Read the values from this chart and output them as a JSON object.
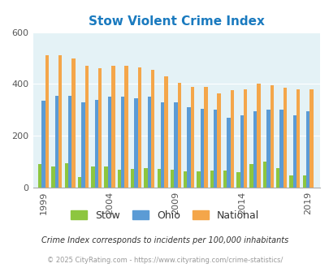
{
  "title": "Stow Violent Crime Index",
  "title_color": "#1a7abf",
  "valid_years": [
    1999,
    2000,
    2001,
    2002,
    2003,
    2004,
    2005,
    2006,
    2007,
    2008,
    2009,
    2010,
    2011,
    2012,
    2013,
    2014,
    2015,
    2016,
    2017,
    2018,
    2019
  ],
  "stow_vals": [
    90,
    80,
    95,
    40,
    80,
    80,
    70,
    72,
    75,
    73,
    68,
    62,
    62,
    65,
    65,
    60,
    90,
    100,
    75,
    48,
    48
  ],
  "ohio_vals": [
    335,
    355,
    355,
    330,
    340,
    350,
    350,
    345,
    350,
    330,
    330,
    310,
    305,
    300,
    270,
    280,
    295,
    300,
    300,
    280,
    295
  ],
  "national_vals": [
    510,
    510,
    500,
    470,
    460,
    470,
    470,
    465,
    455,
    430,
    405,
    390,
    390,
    365,
    375,
    380,
    400,
    395,
    385,
    380,
    378
  ],
  "ylim": [
    0,
    600
  ],
  "yticks": [
    0,
    200,
    400,
    600
  ],
  "xtick_labels": [
    "1999",
    "2004",
    "2009",
    "2014",
    "2019"
  ],
  "xtick_positions": [
    1999,
    2004,
    2009,
    2014,
    2019
  ],
  "background_color": "#e4f2f6",
  "bar_width": 0.27,
  "stow_color": "#8dc63f",
  "ohio_color": "#5b9bd5",
  "national_color": "#f4a64a",
  "legend_labels": [
    "Stow",
    "Ohio",
    "National"
  ],
  "footnote1": "Crime Index corresponds to incidents per 100,000 inhabitants",
  "footnote2": "© 2025 CityRating.com - https://www.cityrating.com/crime-statistics/",
  "footnote1_color": "#333333",
  "footnote2_color": "#999999",
  "xlim_left": 1998.2,
  "xlim_right": 2019.9
}
